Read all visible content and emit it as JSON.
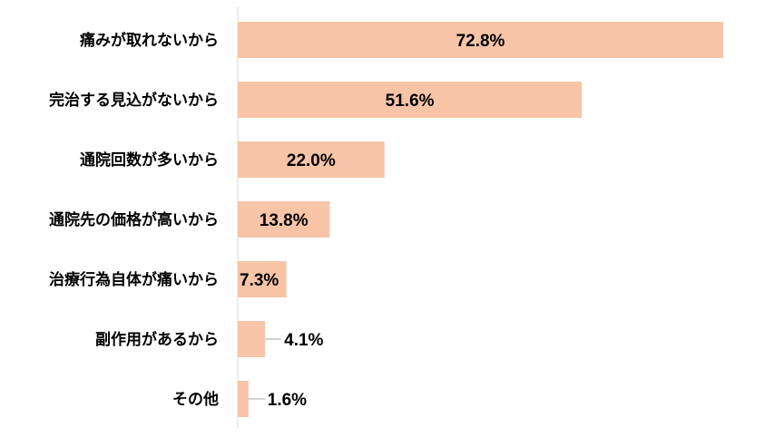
{
  "chart_data": {
    "type": "bar",
    "orientation": "horizontal",
    "categories": [
      "痛みが取れないから",
      "完治する見込がないから",
      "通院回数が多いから",
      "通院先の価格が高いから",
      "治療行為自体が痛いから",
      "副作用があるから",
      "その他"
    ],
    "values": [
      72.8,
      51.6,
      22.0,
      13.8,
      7.3,
      4.1,
      1.6
    ],
    "value_labels": [
      "72.8%",
      "51.6%",
      "22.0%",
      "13.8%",
      "7.3%",
      "4.1%",
      "1.6%"
    ],
    "bar_color": "#F7C4A8",
    "xlim": [
      0,
      100
    ],
    "grid": false,
    "legend": "none"
  }
}
